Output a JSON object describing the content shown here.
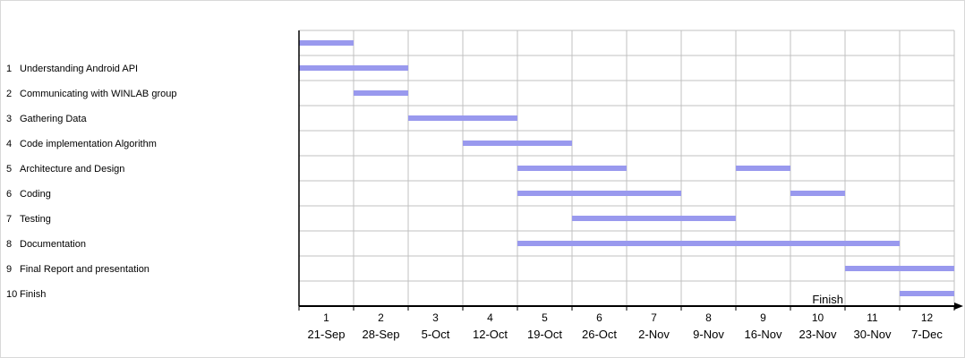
{
  "chart_data": {
    "type": "gantt",
    "weeks": [
      {
        "num": "1",
        "date": "21-Sep"
      },
      {
        "num": "2",
        "date": "28-Sep"
      },
      {
        "num": "3",
        "date": "5-Oct"
      },
      {
        "num": "4",
        "date": "12-Oct"
      },
      {
        "num": "5",
        "date": "19-Oct"
      },
      {
        "num": "6",
        "date": "26-Oct"
      },
      {
        "num": "7",
        "date": "2-Nov"
      },
      {
        "num": "8",
        "date": "9-Nov"
      },
      {
        "num": "9",
        "date": "16-Nov"
      },
      {
        "num": "10",
        "date": "23-Nov"
      },
      {
        "num": "11",
        "date": "30-Nov"
      },
      {
        "num": "12",
        "date": "7-Dec"
      }
    ],
    "tasks": [
      {
        "num": "",
        "label": "",
        "bars": [
          [
            1,
            2
          ]
        ]
      },
      {
        "num": "1",
        "label": "Understanding Android API",
        "bars": [
          [
            1,
            3
          ]
        ]
      },
      {
        "num": "2",
        "label": "Communicating with WINLAB group",
        "bars": [
          [
            2,
            3
          ]
        ]
      },
      {
        "num": "3",
        "label": "Gathering Data",
        "bars": [
          [
            3,
            5
          ]
        ]
      },
      {
        "num": "4",
        "label": "Code implementation Algorithm",
        "bars": [
          [
            4,
            6
          ]
        ]
      },
      {
        "num": "5",
        "label": "Architecture and Design",
        "bars": [
          [
            5,
            7
          ],
          [
            9,
            10
          ]
        ]
      },
      {
        "num": "6",
        "label": "Coding",
        "bars": [
          [
            5,
            8
          ],
          [
            10,
            11
          ]
        ]
      },
      {
        "num": "7",
        "label": "Testing",
        "bars": [
          [
            6,
            9
          ]
        ]
      },
      {
        "num": "8",
        "label": "Documentation",
        "bars": [
          [
            5,
            12
          ]
        ]
      },
      {
        "num": "9",
        "label": "Final Report and presentation",
        "bars": [
          [
            11,
            13
          ]
        ]
      },
      {
        "num": "10",
        "label": "Finish",
        "bars": [
          [
            12,
            13
          ]
        ]
      }
    ],
    "annotation": "Finish",
    "grid": true,
    "colors": {
      "bar": "#9999ee",
      "grid": "#c0c0c0",
      "axis": "#000000"
    }
  }
}
